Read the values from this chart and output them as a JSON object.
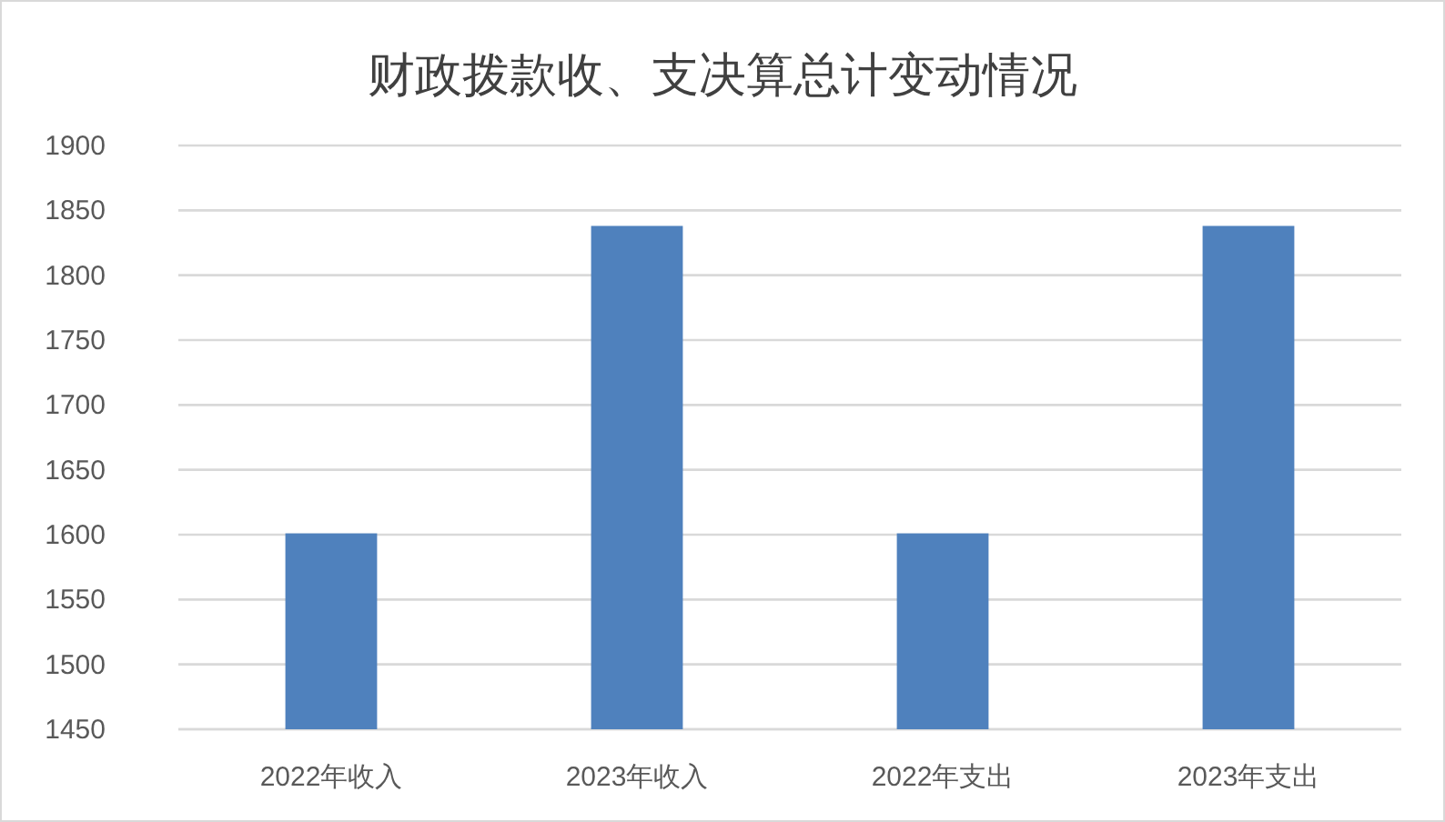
{
  "chart_data": {
    "type": "bar",
    "title": "财政拨款收、支决算总计变动情况",
    "categories": [
      "2022年收入",
      "2023年收入",
      "2022年支出",
      "2023年支出"
    ],
    "values": [
      1601,
      1838,
      1601,
      1838
    ],
    "color": "#4f81bd",
    "ylim": [
      1450,
      1900
    ],
    "yticks": [
      1450,
      1500,
      1550,
      1600,
      1650,
      1700,
      1750,
      1800,
      1850,
      1900
    ],
    "grid": "y"
  }
}
